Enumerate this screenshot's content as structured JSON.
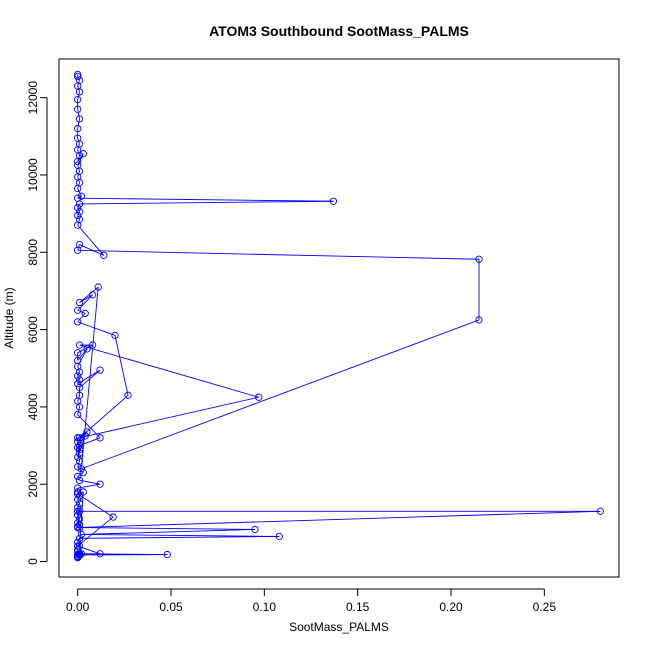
{
  "chart_data": {
    "type": "line",
    "title": "ATOM3 Southbound SootMass_PALMS",
    "xlabel": "SootMass_PALMS",
    "ylabel": "Altitude (m)",
    "xlim": [
      -0.01,
      0.29
    ],
    "ylim": [
      -400,
      13000
    ],
    "x_ticks": [
      0.0,
      0.05,
      0.1,
      0.15,
      0.2,
      0.25
    ],
    "x_tick_labels": [
      "0.00",
      "0.05",
      "0.10",
      "0.15",
      "0.20",
      "0.25"
    ],
    "y_ticks": [
      0,
      2000,
      4000,
      6000,
      8000,
      10000,
      12000
    ],
    "y_tick_labels": [
      "0",
      "2000",
      "4000",
      "6000",
      "8000",
      "10000",
      "12000"
    ],
    "grid": false,
    "legend": "none",
    "color": "#0000ff",
    "series": [
      {
        "x": [
          0.0,
          0.0,
          0.001,
          0.0,
          0.001,
          0.0,
          0.0,
          0.001,
          0.0,
          0.0,
          0.001,
          0.0,
          0.001,
          0.0,
          0.003,
          0.0,
          0.001,
          0.0,
          0.001,
          0.0,
          0.002,
          0.0,
          0.137,
          0.001,
          0.0,
          0.001,
          0.0,
          0.001,
          0.0,
          0.014,
          0.001,
          0.0,
          0.215,
          0.215,
          0.002,
          0.011,
          0.001,
          0.008,
          0.0,
          0.004,
          0.0,
          0.02,
          0.027,
          0.001,
          0.097,
          0.001,
          0.008,
          0.0,
          0.0,
          0.005,
          0.0,
          0.001,
          0.0,
          0.001,
          0.0,
          0.012,
          0.001,
          0.001,
          0.0,
          0.001,
          0.0,
          0.012,
          0.001,
          0.001,
          0.0,
          0.005,
          0.0,
          0.001,
          0.0,
          0.004,
          0.0,
          0.001,
          0.0,
          0.003,
          0.0,
          0.001,
          0.012,
          0.0,
          0.0,
          0.001,
          0.0,
          0.001,
          0.0,
          0.001,
          0.0,
          0.001,
          0.0,
          0.001,
          0.0,
          0.001,
          0.0,
          0.28,
          0.0,
          0.095,
          0.002,
          0.108,
          0.001,
          0.0,
          0.001,
          0.003,
          0.0,
          0.019,
          0.0,
          0.012,
          0.002,
          0.048,
          0.001,
          0.0,
          0.0,
          0.001,
          0.0,
          0.001,
          0.0,
          0.0,
          0.0
        ],
        "y": [
          12600,
          12550,
          12450,
          12300,
          12150,
          11950,
          11700,
          11450,
          11200,
          10950,
          10800,
          10650,
          10500,
          10350,
          10550,
          10250,
          10100,
          9950,
          9800,
          9650,
          9450,
          9400,
          9320,
          9250,
          9150,
          9050,
          8950,
          8850,
          8700,
          7920,
          8200,
          8050,
          7820,
          6250,
          2400,
          7100,
          6700,
          6900,
          6500,
          6420,
          6200,
          5850,
          4300,
          3200,
          4250,
          5600,
          5600,
          5400,
          5200,
          5500,
          5050,
          4900,
          4800,
          4700,
          4600,
          4950,
          4500,
          4300,
          4150,
          4000,
          3800,
          3200,
          3000,
          2800,
          3200,
          3350,
          3100,
          2900,
          2700,
          3250,
          2950,
          2600,
          2450,
          2300,
          2200,
          2100,
          2000,
          1900,
          1800,
          1700,
          1600,
          1500,
          1400,
          1300,
          1200,
          1100,
          1000,
          950,
          900,
          850,
          1300,
          1300,
          880,
          830,
          700,
          650,
          600,
          500,
          400,
          1800,
          1750,
          1150,
          400,
          200,
          200,
          180,
          170,
          300,
          250,
          200,
          180,
          160,
          140,
          120,
          100
        ]
      }
    ]
  }
}
